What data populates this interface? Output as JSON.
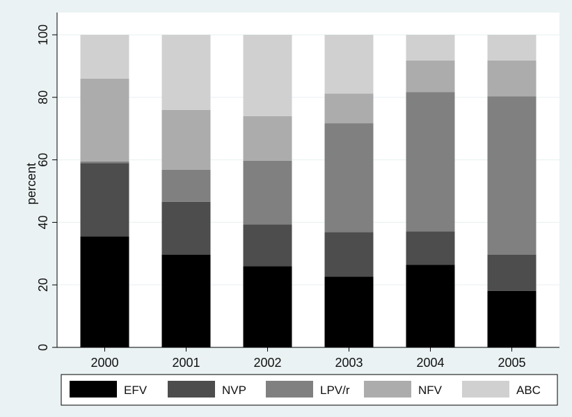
{
  "chart_data": {
    "type": "bar",
    "stacked": true,
    "title": "",
    "xlabel": "",
    "ylabel": "percent",
    "ylim": [
      0,
      100
    ],
    "yticks": [
      0,
      20,
      40,
      60,
      80,
      100
    ],
    "grid": true,
    "legend_position": "bottom",
    "categories": [
      "2000",
      "2001",
      "2002",
      "2003",
      "2004",
      "2005"
    ],
    "series": [
      {
        "name": "EFV",
        "color": "#000000",
        "values": [
          35.5,
          29.7,
          26.0,
          22.6,
          26.4,
          18.1
        ]
      },
      {
        "name": "NVP",
        "color": "#4d4d4d",
        "values": [
          23.4,
          16.9,
          13.3,
          14.3,
          10.7,
          11.6
        ]
      },
      {
        "name": "LPV/r",
        "color": "#808080",
        "values": [
          0.6,
          10.2,
          20.4,
          34.8,
          44.6,
          50.6
        ]
      },
      {
        "name": "NFV",
        "color": "#acacac",
        "values": [
          26.5,
          19.2,
          14.3,
          9.5,
          10.1,
          11.5
        ]
      },
      {
        "name": "ABC",
        "color": "#d0d0d0",
        "values": [
          14.0,
          24.0,
          26.0,
          18.8,
          8.2,
          8.2
        ]
      }
    ]
  }
}
